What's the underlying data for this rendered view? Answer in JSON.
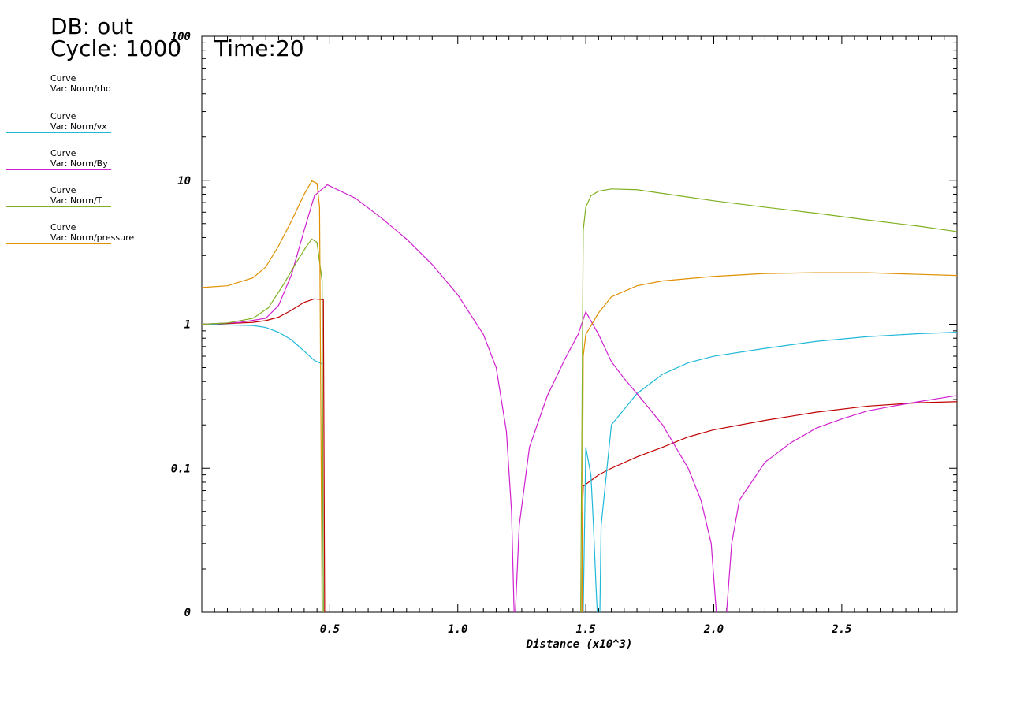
{
  "header": {
    "db_label": "DB: out",
    "cycle_label": "Cycle: 1000",
    "time_label": "Time:20"
  },
  "legend": [
    {
      "line1": "Curve",
      "line2": "Var: Norm/rho",
      "color": "#c00000"
    },
    {
      "line1": "Curve",
      "line2": "Var: Norm/vx",
      "color": "#20b8d8"
    },
    {
      "line1": "Curve",
      "line2": "Var: Norm/By",
      "color": "#d020d0"
    },
    {
      "line1": "Curve",
      "line2": "Var: Norm/T",
      "color": "#80b020"
    },
    {
      "line1": "Curve",
      "line2": "Var: Norm/pressure",
      "color": "#e09000"
    }
  ],
  "chart_data": {
    "type": "line",
    "xlabel": "Distance (x10^3)",
    "ylabel": "",
    "xlim": [
      0,
      2.95
    ],
    "ylim_log": [
      0.01,
      100
    ],
    "y_scale": "log",
    "x_ticks": [
      "0.5",
      "1.0",
      "1.5",
      "2.0",
      "2.5"
    ],
    "x_tick_values": [
      0.5,
      1.0,
      1.5,
      2.0,
      2.5
    ],
    "y_ticks": [
      "0",
      "0.1",
      "1",
      "10",
      "100"
    ],
    "y_tick_values": [
      0.01,
      0.1,
      1,
      10,
      100
    ],
    "series": [
      {
        "name": "Var: Norm/rho",
        "color": "#c00000",
        "points": [
          [
            0,
            1
          ],
          [
            0.1,
            1.01
          ],
          [
            0.2,
            1.03
          ],
          [
            0.25,
            1.06
          ],
          [
            0.3,
            1.12
          ],
          [
            0.35,
            1.25
          ],
          [
            0.4,
            1.42
          ],
          [
            0.44,
            1.5
          ],
          [
            0.475,
            1.48
          ],
          [
            0.48,
            0.01
          ],
          [
            0.48,
            null
          ],
          [
            1.485,
            0.01
          ],
          [
            1.487,
            0.05
          ],
          [
            1.49,
            0.075
          ],
          [
            1.55,
            0.09
          ],
          [
            1.6,
            0.1
          ],
          [
            1.7,
            0.12
          ],
          [
            1.8,
            0.14
          ],
          [
            1.9,
            0.165
          ],
          [
            2.0,
            0.185
          ],
          [
            2.2,
            0.215
          ],
          [
            2.4,
            0.245
          ],
          [
            2.6,
            0.27
          ],
          [
            2.8,
            0.285
          ],
          [
            2.95,
            0.29
          ]
        ]
      },
      {
        "name": "Var: Norm/vx",
        "color": "#20b8d8",
        "points": [
          [
            0,
            1
          ],
          [
            0.2,
            0.98
          ],
          [
            0.25,
            0.95
          ],
          [
            0.3,
            0.88
          ],
          [
            0.35,
            0.78
          ],
          [
            0.4,
            0.65
          ],
          [
            0.44,
            0.56
          ],
          [
            0.47,
            0.53
          ],
          [
            0.475,
            0.01
          ],
          [
            0.475,
            null
          ],
          [
            1.49,
            0.01
          ],
          [
            1.5,
            0.14
          ],
          [
            1.52,
            0.09
          ],
          [
            1.53,
            0.04
          ],
          [
            1.54,
            0.015
          ],
          [
            1.545,
            0.01
          ],
          [
            1.545,
            null
          ],
          [
            1.555,
            0.01
          ],
          [
            1.56,
            0.04
          ],
          [
            1.6,
            0.2
          ],
          [
            1.7,
            0.33
          ],
          [
            1.8,
            0.45
          ],
          [
            1.9,
            0.54
          ],
          [
            2.0,
            0.6
          ],
          [
            2.2,
            0.68
          ],
          [
            2.4,
            0.76
          ],
          [
            2.6,
            0.82
          ],
          [
            2.8,
            0.86
          ],
          [
            2.95,
            0.88
          ]
        ]
      },
      {
        "name": "Var: Norm/By",
        "color": "#d020d0",
        "points": [
          [
            0,
            1
          ],
          [
            0.15,
            1.03
          ],
          [
            0.25,
            1.1
          ],
          [
            0.3,
            1.35
          ],
          [
            0.35,
            2.2
          ],
          [
            0.4,
            4.5
          ],
          [
            0.44,
            7.8
          ],
          [
            0.49,
            9.3
          ],
          [
            0.6,
            7.5
          ],
          [
            0.7,
            5.5
          ],
          [
            0.8,
            3.9
          ],
          [
            0.9,
            2.6
          ],
          [
            1.0,
            1.6
          ],
          [
            1.1,
            0.85
          ],
          [
            1.15,
            0.5
          ],
          [
            1.19,
            0.18
          ],
          [
            1.21,
            0.05
          ],
          [
            1.22,
            0.01
          ],
          [
            1.22,
            null
          ],
          [
            1.225,
            0.01
          ],
          [
            1.24,
            0.04
          ],
          [
            1.28,
            0.14
          ],
          [
            1.35,
            0.32
          ],
          [
            1.42,
            0.58
          ],
          [
            1.47,
            0.85
          ],
          [
            1.5,
            1.22
          ],
          [
            1.55,
            0.85
          ],
          [
            1.6,
            0.55
          ],
          [
            1.65,
            0.42
          ],
          [
            1.7,
            0.33
          ],
          [
            1.8,
            0.2
          ],
          [
            1.9,
            0.1
          ],
          [
            1.95,
            0.06
          ],
          [
            1.99,
            0.03
          ],
          [
            2.01,
            0.01
          ],
          [
            2.01,
            null
          ],
          [
            2.05,
            0.01
          ],
          [
            2.07,
            0.03
          ],
          [
            2.1,
            0.06
          ],
          [
            2.2,
            0.11
          ],
          [
            2.3,
            0.15
          ],
          [
            2.4,
            0.19
          ],
          [
            2.5,
            0.22
          ],
          [
            2.6,
            0.25
          ],
          [
            2.7,
            0.27
          ],
          [
            2.8,
            0.29
          ],
          [
            2.95,
            0.32
          ]
        ]
      },
      {
        "name": "Var: Norm/T",
        "color": "#80b020",
        "points": [
          [
            0,
            1
          ],
          [
            0.1,
            1.02
          ],
          [
            0.2,
            1.1
          ],
          [
            0.26,
            1.3
          ],
          [
            0.32,
            1.9
          ],
          [
            0.37,
            2.7
          ],
          [
            0.41,
            3.5
          ],
          [
            0.43,
            3.9
          ],
          [
            0.45,
            3.7
          ],
          [
            0.47,
            2.0
          ],
          [
            0.475,
            0.01
          ],
          [
            0.475,
            null
          ],
          [
            1.48,
            0.01
          ],
          [
            1.49,
            4.5
          ],
          [
            1.5,
            6.5
          ],
          [
            1.52,
            7.8
          ],
          [
            1.55,
            8.4
          ],
          [
            1.6,
            8.7
          ],
          [
            1.7,
            8.6
          ],
          [
            1.8,
            8.1
          ],
          [
            2.0,
            7.2
          ],
          [
            2.2,
            6.5
          ],
          [
            2.4,
            5.9
          ],
          [
            2.6,
            5.3
          ],
          [
            2.8,
            4.8
          ],
          [
            2.95,
            4.4
          ]
        ]
      },
      {
        "name": "Var: Norm/pressure",
        "color": "#e09000",
        "points": [
          [
            0,
            1.8
          ],
          [
            0.1,
            1.85
          ],
          [
            0.2,
            2.1
          ],
          [
            0.25,
            2.5
          ],
          [
            0.3,
            3.5
          ],
          [
            0.35,
            5.2
          ],
          [
            0.4,
            8.0
          ],
          [
            0.43,
            9.9
          ],
          [
            0.45,
            9.5
          ],
          [
            0.46,
            6.5
          ],
          [
            0.47,
            0.01
          ],
          [
            0.47,
            null
          ],
          [
            1.485,
            0.01
          ],
          [
            1.49,
            0.6
          ],
          [
            1.5,
            0.85
          ],
          [
            1.55,
            1.2
          ],
          [
            1.6,
            1.55
          ],
          [
            1.7,
            1.85
          ],
          [
            1.8,
            2.0
          ],
          [
            2.0,
            2.15
          ],
          [
            2.2,
            2.25
          ],
          [
            2.4,
            2.28
          ],
          [
            2.6,
            2.28
          ],
          [
            2.8,
            2.22
          ],
          [
            2.95,
            2.18
          ]
        ]
      }
    ]
  }
}
